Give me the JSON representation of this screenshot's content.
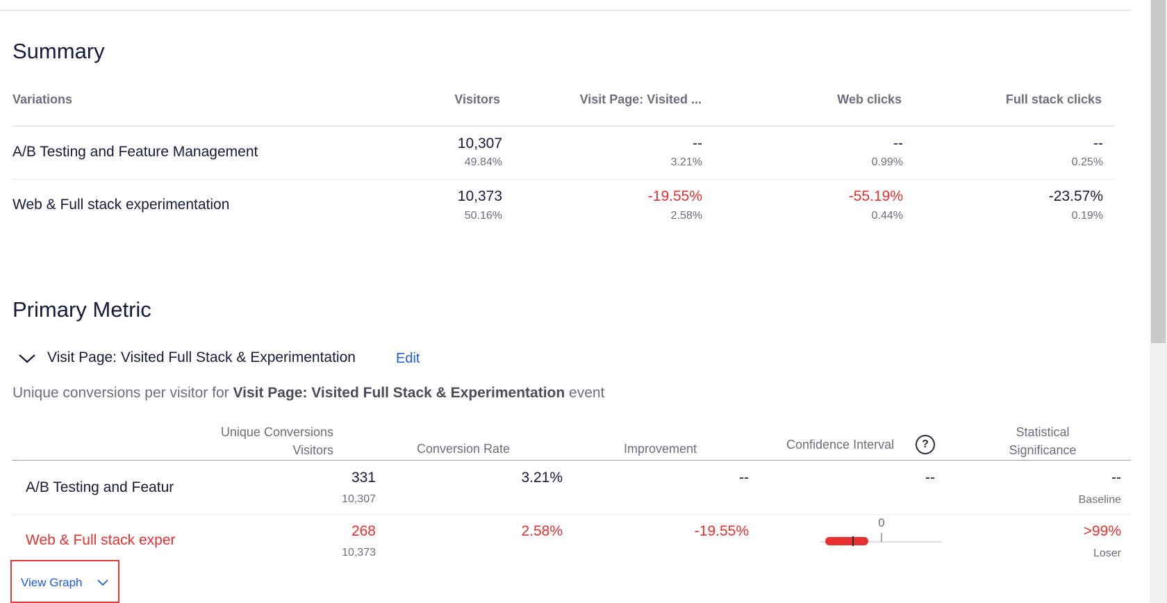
{
  "summary": {
    "title": "Summary",
    "columns": [
      "Variations",
      "Visitors",
      "Visit Page: Visited ...",
      "Web clicks",
      "Full stack clicks"
    ],
    "rows": [
      {
        "name": "A/B Testing and Feature Management",
        "visitors": "10,307",
        "visitors_pct": "49.84%",
        "visit_page": "--",
        "visit_page_rate": "3.21%",
        "web_clicks": "--",
        "web_clicks_rate": "0.99%",
        "fullstack_clicks": "--",
        "fullstack_clicks_rate": "0.25%"
      },
      {
        "name": "Web & Full stack experimentation",
        "visitors": "10,373",
        "visitors_pct": "50.16%",
        "visit_page": "-19.55%",
        "visit_page_rate": "2.58%",
        "web_clicks": "-55.19%",
        "web_clicks_rate": "0.44%",
        "fullstack_clicks": "-23.57%",
        "fullstack_clicks_rate": "0.19%"
      }
    ]
  },
  "primary_metric": {
    "title": "Primary Metric",
    "metric_name": "Visit Page: Visited Full Stack & Experimentation",
    "edit_label": "Edit",
    "description_prefix": "Unique conversions per visitor for ",
    "description_bold": "Visit Page: Visited Full Stack & Experimentation",
    "description_suffix": " event",
    "headers": {
      "uc_line1": "Unique Conversions",
      "uc_line2": "Visitors",
      "conversion_rate": "Conversion Rate",
      "improvement": "Improvement",
      "confidence_interval": "Confidence Interval",
      "help_glyph": "?",
      "sig_line1": "Statistical",
      "sig_line2": "Significance"
    },
    "rows": [
      {
        "name": "A/B Testing and Featur",
        "conversions": "331",
        "visitors": "10,307",
        "conversion_rate": "3.21%",
        "improvement": "--",
        "ci": "--",
        "significance": "--",
        "status": "Baseline"
      },
      {
        "name": "Web & Full stack exper",
        "conversions": "268",
        "visitors": "10,373",
        "conversion_rate": "2.58%",
        "improvement": "-19.55%",
        "ci_zero_label": "0",
        "significance": ">99%",
        "status": "Loser"
      }
    ],
    "view_graph_label": "View Graph"
  },
  "colors": {
    "negative": "#e8302f",
    "link": "#1e5bd8",
    "highlight_box": "#e53935"
  }
}
